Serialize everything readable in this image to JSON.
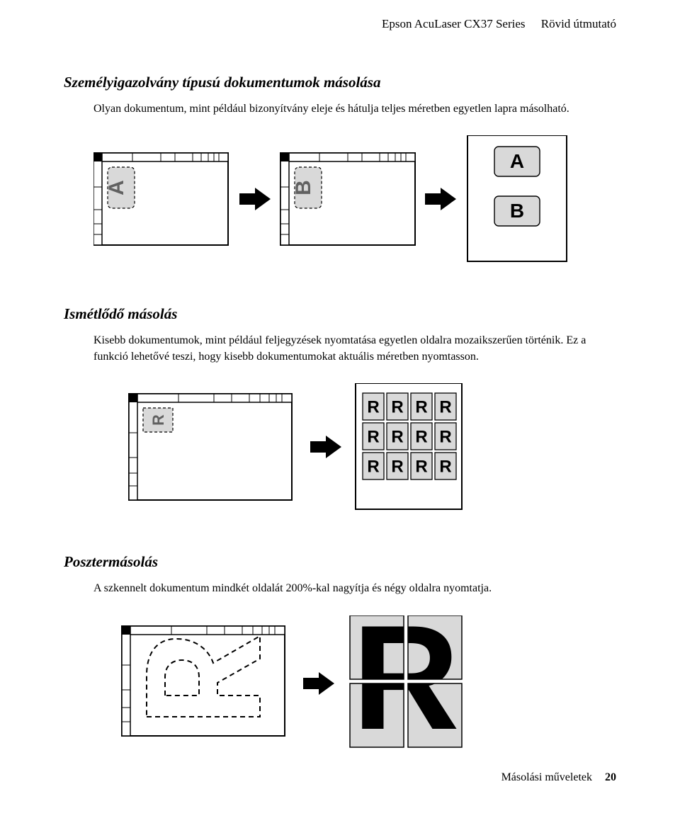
{
  "header": {
    "product": "Epson AcuLaser CX37 Series",
    "doc": "Rövid útmutató"
  },
  "sections": {
    "idcard": {
      "title": "Személyigazolvány típusú dokumentumok másolása",
      "body": "Olyan dokumentum, mint például bizonyítvány eleje és hátulja teljes méretben egyetlen lapra másolható."
    },
    "repeat": {
      "title": "Ismétlődő másolás",
      "body": "Kisebb dokumentumok, mint például feljegyzések nyomtatása egyetlen oldalra mozaikszerűen történik. Ez a funkció lehetővé teszi, hogy kisebb dokumentumokat aktuális méretben nyomtasson."
    },
    "poster": {
      "title": "Posztermásolás",
      "body": "A szkennelt dokumentum mindkét oldalát 200%-kal nagyítja és négy oldalra nyomtatja."
    }
  },
  "diagrams": {
    "idcard": {
      "labelA": "A",
      "labelB": "B"
    },
    "repeat": {
      "tile": "R",
      "rows": 3,
      "cols": 4
    },
    "poster": {
      "letter": "R"
    }
  },
  "colors": {
    "stroke": "#000000",
    "fill_grey": "#d9d9d9",
    "fill_white": "#ffffff",
    "dash": "#000000"
  },
  "footer": {
    "section": "Másolási műveletek",
    "page": "20"
  }
}
